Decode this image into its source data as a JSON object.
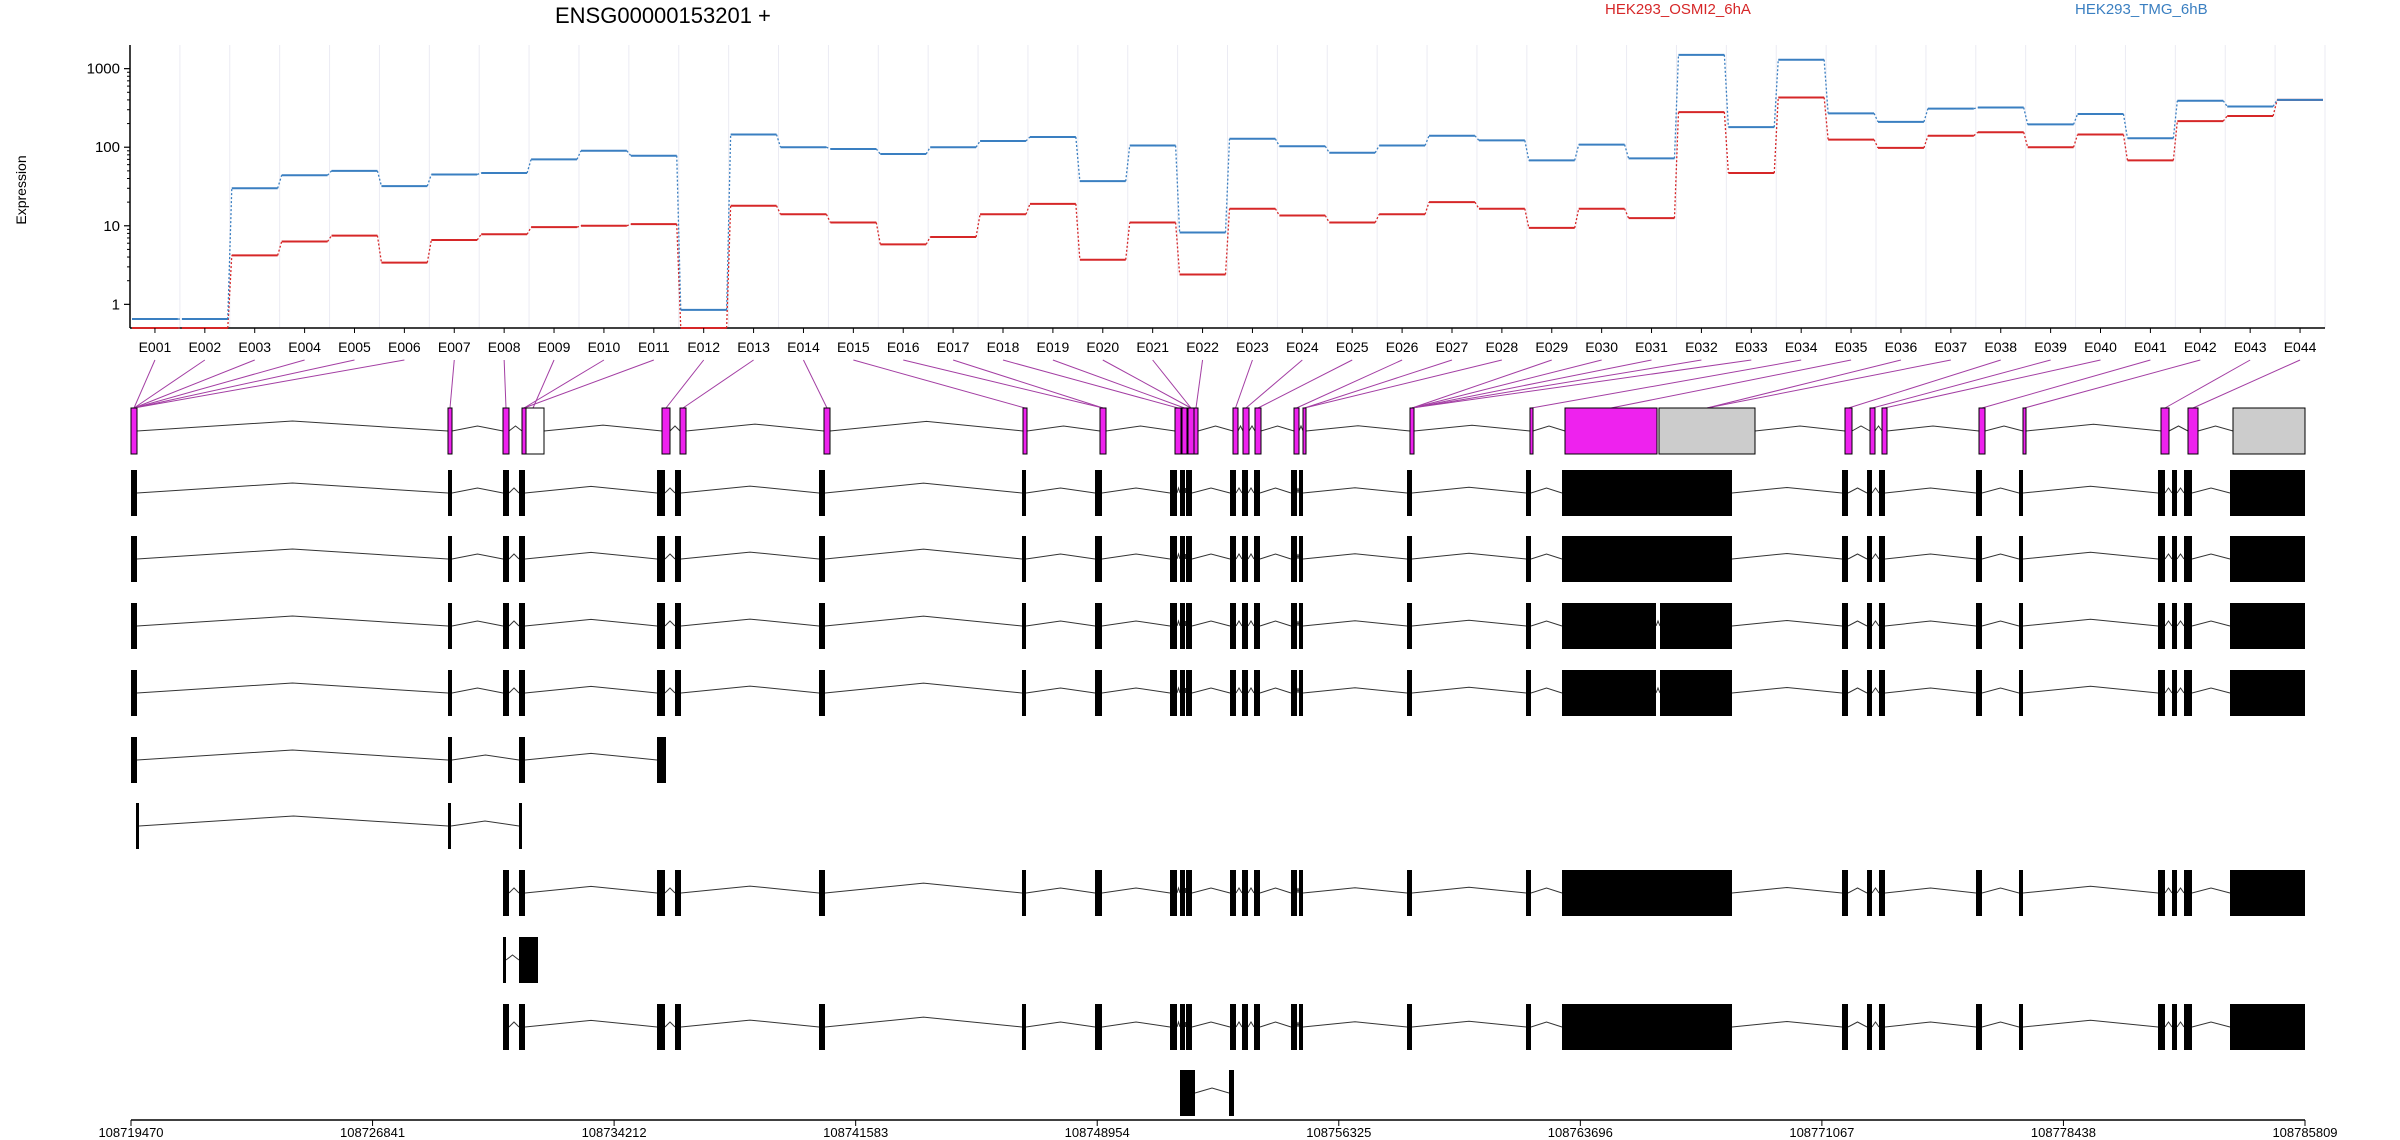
{
  "chart_data": {
    "type": "line",
    "title": "ENSG00000153201 +",
    "ylabel": "Expression",
    "xlabel": "",
    "y_scale": "log",
    "ylim": [
      0.5,
      2000
    ],
    "yticks": [
      "1000",
      "100",
      "10",
      "1"
    ],
    "grid": true,
    "legend_placement": "top-right",
    "categories": [
      "E001",
      "E002",
      "E003",
      "E004",
      "E005",
      "E006",
      "E007",
      "E008",
      "E009",
      "E010",
      "E011",
      "E012",
      "E013",
      "E014",
      "E015",
      "E016",
      "E017",
      "E018",
      "E019",
      "E020",
      "E021",
      "E022",
      "E023",
      "E024",
      "E025",
      "E026",
      "E027",
      "E028",
      "E029",
      "E030",
      "E031",
      "E032",
      "E033",
      "E034",
      "E035",
      "E036",
      "E037",
      "E038",
      "E039",
      "E040",
      "E041",
      "E042",
      "E043",
      "E044"
    ],
    "series": [
      {
        "name": "HEK293_OSMI2_6hA",
        "color": "#d62728",
        "values": [
          0.5,
          0.5,
          4.2,
          6.3,
          7.5,
          3.4,
          6.6,
          7.8,
          9.6,
          10,
          10.5,
          0.5,
          18,
          14,
          11,
          5.8,
          7.2,
          14,
          19,
          3.7,
          11,
          2.4,
          16.5,
          13.5,
          11,
          14,
          20,
          16.5,
          9.4,
          16.5,
          12.5,
          280,
          47,
          430,
          125,
          98,
          140,
          155,
          100,
          145,
          68,
          215,
          250,
          400
        ]
      },
      {
        "name": "HEK293_TMG_6hB",
        "color": "#3a7fc1",
        "values": [
          0.65,
          0.65,
          30,
          44,
          50,
          32,
          45,
          47,
          70,
          90,
          78,
          0.85,
          145,
          100,
          95,
          82,
          100,
          120,
          135,
          37,
          105,
          8.2,
          128,
          103,
          85,
          105,
          140,
          122,
          68,
          108,
          72,
          1500,
          180,
          1300,
          270,
          210,
          310,
          320,
          195,
          265,
          130,
          390,
          330,
          400
        ]
      }
    ],
    "genomic_axis_ticks": [
      "108719470",
      "108726841",
      "108734212",
      "108741583",
      "108748954",
      "108756325",
      "108763696",
      "108771067",
      "108778438",
      "108785809"
    ]
  },
  "colors": {
    "exon_tested": "#ee22ee",
    "exon_not_tested": "#cccccc",
    "transcript": "#000000",
    "connector": "#a33ea3"
  }
}
